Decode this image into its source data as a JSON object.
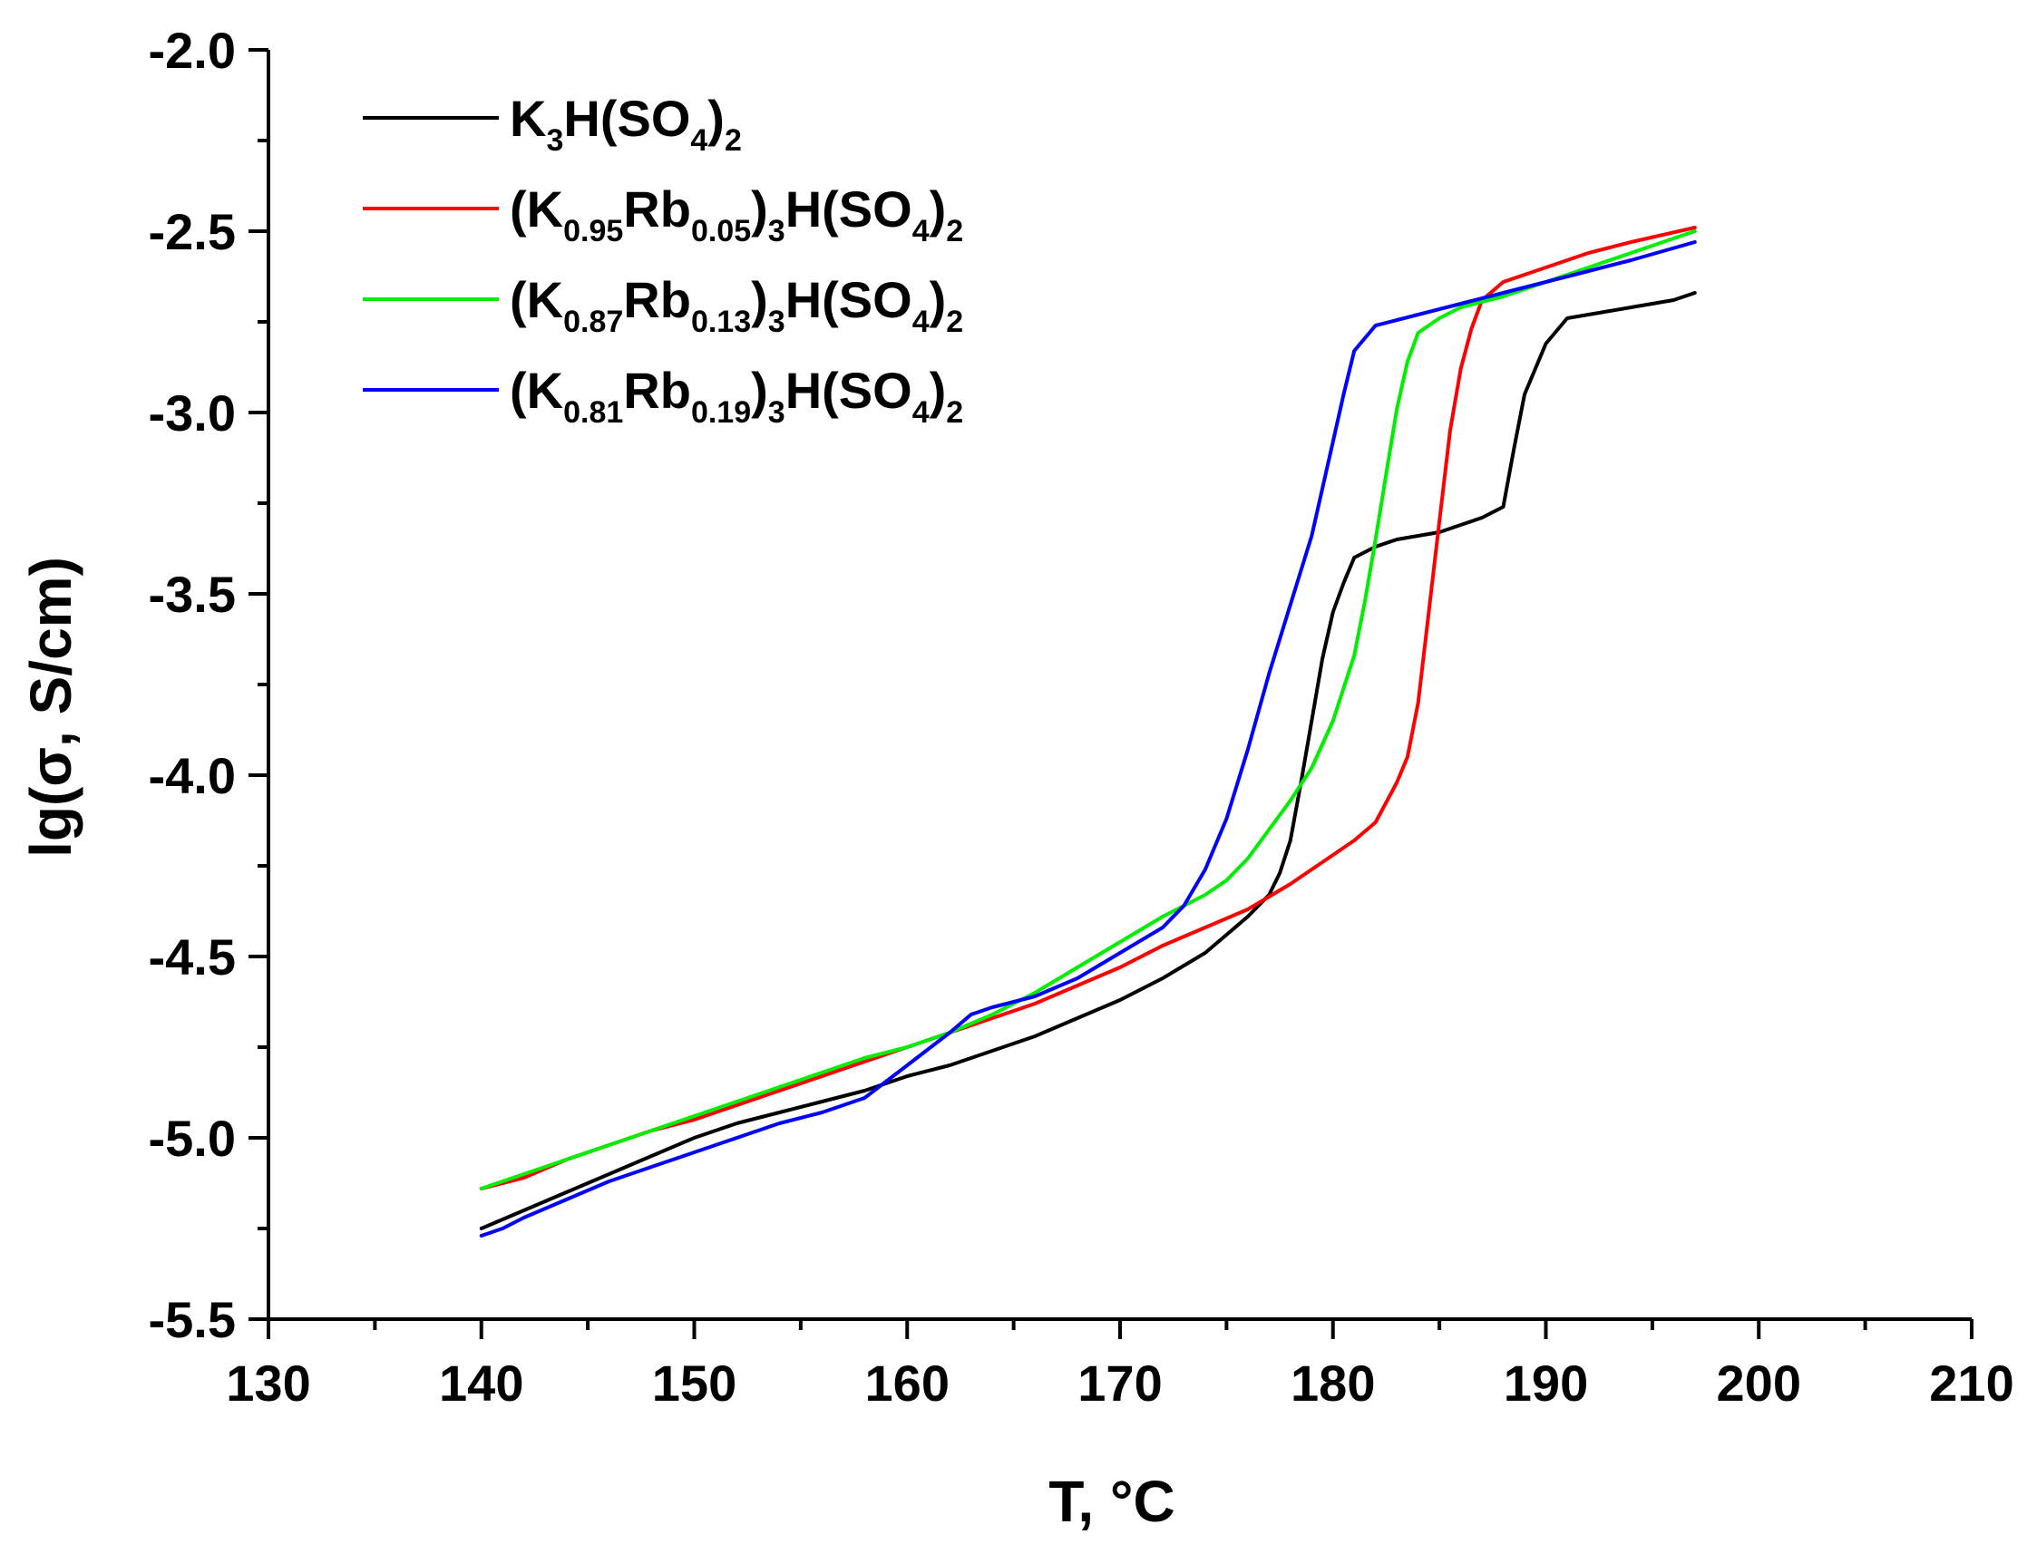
{
  "chart_data": {
    "type": "line",
    "title": "",
    "xlabel": "T, °C",
    "ylabel": "lg(σ, S/cm)",
    "xlim": [
      130,
      210
    ],
    "ylim": [
      -5.5,
      -2.0
    ],
    "x_ticks": [
      130,
      140,
      150,
      160,
      170,
      180,
      190,
      200,
      210
    ],
    "x_tick_labels": [
      "130",
      "140",
      "150",
      "160",
      "170",
      "180",
      "190",
      "200",
      "210"
    ],
    "y_ticks": [
      -2.0,
      -2.5,
      -3.0,
      -3.5,
      -4.0,
      -4.5,
      -5.0,
      -5.5
    ],
    "y_tick_labels": [
      "-2.0",
      "-2.5",
      "-3.0",
      "-3.5",
      "-4.0",
      "-4.5",
      "-5.0",
      "-5.5"
    ],
    "grid": false,
    "legend_position": "top-left",
    "series": [
      {
        "name": "K3H(SO4)2",
        "legend_parts": [
          [
            "K",
            ""
          ],
          [
            "3",
            "sub"
          ],
          [
            "H(SO",
            ""
          ],
          [
            "4",
            "sub"
          ],
          [
            ")",
            ""
          ],
          [
            "2",
            "sub"
          ]
        ],
        "color": "#000000",
        "x": [
          140,
          142,
          144,
          146,
          148,
          150,
          152,
          154,
          156,
          158,
          160,
          162,
          164,
          166,
          168,
          170,
          172,
          174,
          175,
          176,
          177,
          177.5,
          178,
          178.5,
          179,
          179.5,
          180,
          180.5,
          181,
          182,
          183,
          184,
          185,
          186,
          187,
          188,
          188.5,
          189,
          190,
          191,
          192,
          194,
          196,
          197
        ],
        "y": [
          -5.25,
          -5.2,
          -5.15,
          -5.1,
          -5.05,
          -5.0,
          -4.96,
          -4.93,
          -4.9,
          -4.87,
          -4.83,
          -4.8,
          -4.76,
          -4.72,
          -4.67,
          -4.62,
          -4.56,
          -4.49,
          -4.44,
          -4.39,
          -4.33,
          -4.27,
          -4.18,
          -4.02,
          -3.85,
          -3.68,
          -3.55,
          -3.47,
          -3.4,
          -3.37,
          -3.35,
          -3.34,
          -3.33,
          -3.31,
          -3.29,
          -3.26,
          -3.1,
          -2.95,
          -2.81,
          -2.74,
          -2.73,
          -2.71,
          -2.69,
          -2.67
        ]
      },
      {
        "name": "(K0.95Rb0.05)3H(SO4)2",
        "legend_parts": [
          [
            "(K",
            ""
          ],
          [
            "0.95",
            "sub"
          ],
          [
            "Rb",
            ""
          ],
          [
            "0.05",
            "sub"
          ],
          [
            ")",
            ""
          ],
          [
            "3",
            "sub"
          ],
          [
            "H(SO",
            ""
          ],
          [
            "4",
            "sub"
          ],
          [
            ")",
            ""
          ],
          [
            "2",
            "sub"
          ]
        ],
        "color": "#ff0000",
        "x": [
          140,
          142,
          144,
          146,
          148,
          150,
          152,
          154,
          156,
          158,
          160,
          162,
          164,
          166,
          168,
          170,
          172,
          174,
          176,
          178,
          180,
          181,
          182,
          183,
          183.5,
          184,
          184.5,
          185,
          185.5,
          186,
          186.5,
          187,
          188,
          190,
          192,
          194,
          197
        ],
        "y": [
          -5.14,
          -5.11,
          -5.06,
          -5.02,
          -4.98,
          -4.95,
          -4.91,
          -4.87,
          -4.83,
          -4.79,
          -4.75,
          -4.71,
          -4.67,
          -4.63,
          -4.58,
          -4.53,
          -4.47,
          -4.42,
          -4.37,
          -4.3,
          -4.22,
          -4.18,
          -4.13,
          -4.02,
          -3.95,
          -3.8,
          -3.55,
          -3.3,
          -3.05,
          -2.88,
          -2.77,
          -2.69,
          -2.64,
          -2.6,
          -2.56,
          -2.53,
          -2.49
        ]
      },
      {
        "name": "(K0.87Rb0.13)3H(SO4)2",
        "legend_parts": [
          [
            "(K",
            ""
          ],
          [
            "0.87",
            "sub"
          ],
          [
            "Rb",
            ""
          ],
          [
            "0.13",
            "sub"
          ],
          [
            ")",
            ""
          ],
          [
            "3",
            "sub"
          ],
          [
            "H(SO",
            ""
          ],
          [
            "4",
            "sub"
          ],
          [
            ")",
            ""
          ],
          [
            "2",
            "sub"
          ]
        ],
        "color": "#00ee00",
        "x": [
          140,
          141,
          142,
          144,
          146,
          148,
          150,
          152,
          154,
          156,
          158,
          160,
          162,
          164,
          166,
          168,
          170,
          172,
          174,
          175,
          176,
          177,
          178,
          179,
          180,
          181,
          181.5,
          182,
          182.5,
          183,
          183.5,
          184,
          185,
          186,
          188,
          190,
          192,
          194,
          197
        ],
        "y": [
          -5.14,
          -5.12,
          -5.1,
          -5.06,
          -5.02,
          -4.98,
          -4.94,
          -4.9,
          -4.86,
          -4.82,
          -4.78,
          -4.75,
          -4.71,
          -4.66,
          -4.6,
          -4.53,
          -4.46,
          -4.39,
          -4.33,
          -4.29,
          -4.23,
          -4.15,
          -4.07,
          -3.98,
          -3.85,
          -3.67,
          -3.52,
          -3.35,
          -3.17,
          -2.99,
          -2.86,
          -2.78,
          -2.74,
          -2.71,
          -2.68,
          -2.64,
          -2.6,
          -2.56,
          -2.5
        ]
      },
      {
        "name": "(K0.81Rb0.19)3H(SO4)2",
        "legend_parts": [
          [
            "(K",
            ""
          ],
          [
            "0.81",
            "sub"
          ],
          [
            "Rb",
            ""
          ],
          [
            "0.19",
            "sub"
          ],
          [
            ")",
            ""
          ],
          [
            "3",
            "sub"
          ],
          [
            "H(SO",
            ""
          ],
          [
            "4",
            "sub"
          ],
          [
            ")",
            ""
          ],
          [
            "2",
            "sub"
          ]
        ],
        "color": "#0000ff",
        "x": [
          140,
          141,
          142,
          144,
          146,
          148,
          150,
          152,
          154,
          156,
          158,
          160,
          162,
          163,
          164,
          166,
          168,
          170,
          172,
          173,
          174,
          175,
          176,
          177,
          178,
          179,
          180,
          180.5,
          181,
          182,
          184,
          186,
          188,
          190,
          192,
          194,
          197
        ],
        "y": [
          -5.27,
          -5.25,
          -5.22,
          -5.17,
          -5.12,
          -5.08,
          -5.04,
          -5.0,
          -4.96,
          -4.93,
          -4.89,
          -4.8,
          -4.71,
          -4.66,
          -4.64,
          -4.61,
          -4.56,
          -4.49,
          -4.42,
          -4.36,
          -4.26,
          -4.12,
          -3.93,
          -3.72,
          -3.53,
          -3.34,
          -3.08,
          -2.95,
          -2.83,
          -2.76,
          -2.73,
          -2.7,
          -2.67,
          -2.64,
          -2.61,
          -2.58,
          -2.53
        ]
      }
    ]
  }
}
